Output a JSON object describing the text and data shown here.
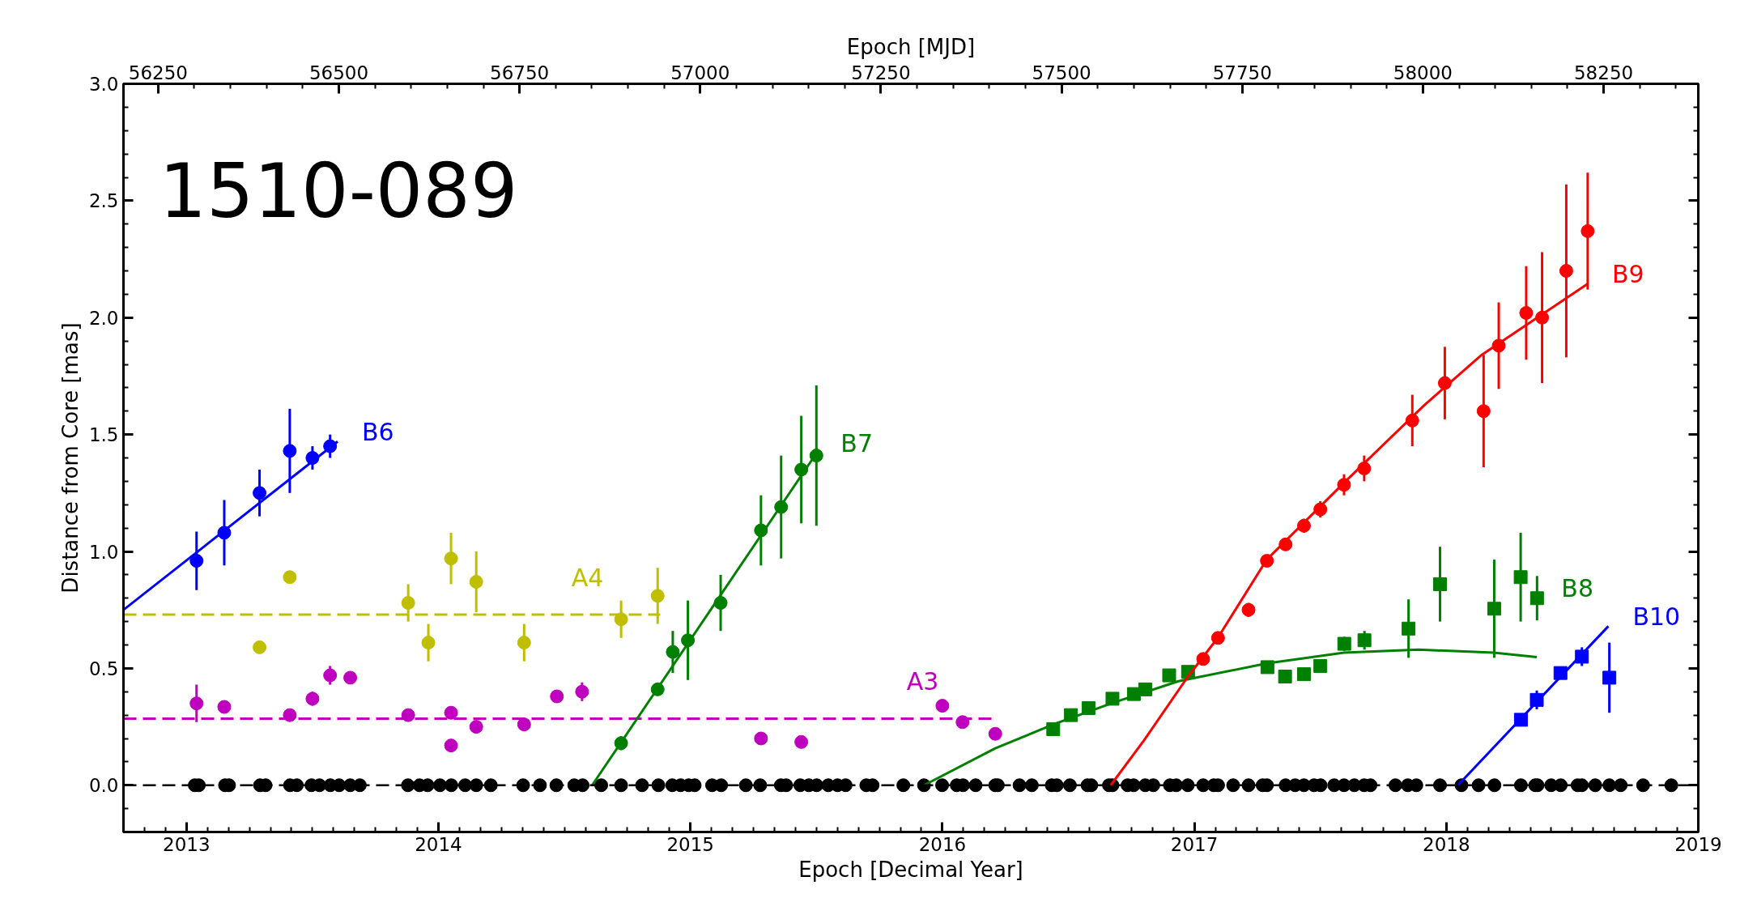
{
  "chart_data": {
    "type": "scatter",
    "title": "1510-089",
    "xlabel": "Epoch [Decimal Year]",
    "ylabel": "Distance from Core [mas]",
    "x2label": "Epoch [MJD]",
    "xlim": [
      2012.75,
      2019
    ],
    "xticks": [
      2013,
      2014,
      2015,
      2016,
      2017,
      2018,
      2019
    ],
    "x2lim": [
      56202,
      58381
    ],
    "x2ticks": [
      56250,
      56500,
      56750,
      57000,
      57250,
      57500,
      57750,
      58000,
      58250
    ],
    "ylim": [
      -0.2,
      3.0
    ],
    "yticks": [
      {
        "value": 0,
        "label": "0.0"
      },
      0.5,
      {
        "value": 1,
        "label": "1.0"
      },
      1.5,
      {
        "value": 2,
        "label": "2.0"
      },
      2.5,
      {
        "value": 3,
        "label": "3.0"
      }
    ],
    "tick_labels": "xy",
    "grid": false,
    "ref_lines": [
      {
        "axis": "y",
        "value": 0,
        "color": "#000000",
        "line_style": "dashed"
      }
    ],
    "series": [
      {
        "marker": "circle",
        "color": "#000000",
        "x": [
          2013.033,
          2013.049,
          2013.153,
          2013.169,
          2013.292,
          2013.314,
          2013.411,
          2013.438,
          2013.496,
          2013.528,
          2013.571,
          2013.606,
          2013.65,
          2013.688,
          2013.879,
          2013.925,
          2013.957,
          2014.006,
          2014.051,
          2014.106,
          2014.15,
          2014.208,
          2014.336,
          2014.403,
          2014.468,
          2014.539,
          2014.572,
          2014.646,
          2014.725,
          2014.808,
          2014.873,
          2014.928,
          2014.961,
          2014.993,
          2015.017,
          2015.086,
          2015.122,
          2015.22,
          2015.277,
          2015.359,
          2015.38,
          2015.436,
          2015.47,
          2015.501,
          2015.547,
          2015.584,
          2015.616,
          2015.698,
          2015.723,
          2015.845,
          2015.927,
          2015.999,
          2016.057,
          2016.082,
          2016.132,
          2016.21,
          2016.22,
          2016.306,
          2016.355,
          2016.434,
          2016.454,
          2016.506,
          2016.576,
          2016.591,
          2016.661,
          2016.675,
          2016.735,
          2016.759,
          2016.805,
          2016.837,
          2016.903,
          2016.928,
          2016.974,
          2017.035,
          2017.077,
          2017.094,
          2017.154,
          2017.215,
          2017.271,
          2017.288,
          2017.362,
          2017.4,
          2017.435,
          2017.475,
          2017.501,
          2017.555,
          2017.594,
          2017.635,
          2017.674,
          2017.699,
          2017.798,
          2017.847,
          2017.881,
          2017.975,
          2018.06,
          2018.128,
          2018.191,
          2018.296,
          2018.353,
          2018.362,
          2018.416,
          2018.454,
          2018.521,
          2018.538,
          2018.591,
          2018.647,
          2018.692,
          2018.781,
          2018.893
        ],
        "values": [
          0,
          0,
          0,
          0,
          0,
          0,
          0,
          0,
          0,
          0,
          0,
          0,
          0,
          0,
          0,
          0,
          0,
          0,
          0,
          0,
          0,
          0,
          0,
          0,
          0,
          0,
          0,
          0,
          0,
          0,
          0,
          0,
          0,
          0,
          0,
          0,
          0,
          0,
          0,
          0,
          0,
          0,
          0,
          0,
          0,
          0,
          0,
          0,
          0,
          0,
          0,
          0,
          0,
          0,
          0,
          0,
          0,
          0,
          0,
          0,
          0,
          0,
          0,
          0,
          0,
          0,
          0,
          0,
          0,
          0,
          0,
          0,
          0,
          0,
          0,
          0,
          0,
          0,
          0,
          0,
          0,
          0,
          0,
          0,
          0,
          0,
          0,
          0,
          0,
          0,
          0,
          0,
          0,
          0,
          0,
          0,
          0,
          0,
          0,
          0,
          0,
          0,
          0,
          0,
          0,
          0,
          0,
          0,
          0
        ]
      },
      {
        "type": "line",
        "name": "A3",
        "line_style": "dashed",
        "color": "#bf00bf",
        "x": [
          2012.75,
          2016.21
        ],
        "values": [
          0.285,
          0.285
        ]
      },
      {
        "marker": "circle",
        "color": "#bf00bf",
        "x": [
          2013.04,
          2013.15,
          2013.41,
          2013.5,
          2013.57,
          2013.65,
          2013.88,
          2014.05,
          2014.05,
          2014.15,
          2014.34,
          2014.47,
          2014.57,
          2015.28,
          2015.44,
          2016.0,
          2016.08,
          2016.21
        ],
        "values": [
          0.35,
          0.335,
          0.3,
          0.37,
          0.47,
          0.46,
          0.3,
          0.31,
          0.17,
          0.25,
          0.26,
          0.38,
          0.4,
          0.2,
          0.185,
          0.34,
          0.27,
          0.22
        ],
        "errors": [
          0.08,
          0.02,
          null,
          0.03,
          0.04,
          0.02,
          null,
          null,
          null,
          null,
          null,
          null,
          0.04,
          null,
          null,
          null,
          null,
          null
        ]
      },
      {
        "type": "line",
        "name": "A4",
        "line_style": "dashed",
        "color": "#bfbf00",
        "x": [
          2012.75,
          2014.88
        ],
        "values": [
          0.73,
          0.73
        ]
      },
      {
        "marker": "circle",
        "color": "#bfbf00",
        "x": [
          2013.29,
          2013.41,
          2013.88,
          2013.96,
          2014.05,
          2014.15,
          2014.34,
          2014.725,
          2014.87
        ],
        "values": [
          0.59,
          0.89,
          0.78,
          0.61,
          0.97,
          0.87,
          0.61,
          0.71,
          0.81
        ],
        "errors": [
          null,
          null,
          0.08,
          0.08,
          0.11,
          0.13,
          0.08,
          0.08,
          0.12
        ]
      },
      {
        "type": "line",
        "name": "B6",
        "line_style": "solid",
        "color": "#0000ff",
        "x": [
          2012.75,
          2013.6
        ],
        "values": [
          0.75,
          1.47
        ]
      },
      {
        "marker": "circle",
        "color": "#0000ff",
        "x": [
          2013.04,
          2013.15,
          2013.29,
          2013.41,
          2013.5,
          2013.57
        ],
        "values": [
          0.96,
          1.08,
          1.25,
          1.43,
          1.4,
          1.45
        ],
        "errors": [
          0.125,
          0.14,
          0.1,
          0.18,
          0.05,
          0.05
        ]
      },
      {
        "type": "line",
        "name": "B7",
        "line_style": "solid",
        "color": "#008000",
        "x": [
          2014.61,
          2015.5
        ],
        "values": [
          0,
          1.42
        ]
      },
      {
        "marker": "circle",
        "color": "#008000",
        "x": [
          2014.725,
          2014.87,
          2014.93,
          2014.99,
          2015.12,
          2015.28,
          2015.36,
          2015.44,
          2015.5
        ],
        "values": [
          0.18,
          0.41,
          0.57,
          0.62,
          0.78,
          1.09,
          1.19,
          1.35,
          1.41
        ],
        "errors": [
          0.03,
          null,
          0.09,
          0.17,
          0.12,
          0.15,
          0.22,
          0.23,
          0.3
        ]
      },
      {
        "type": "line",
        "line_style": "solid",
        "color": "#008000",
        "x": [
          2015.927,
          2016.21,
          2016.44,
          2016.675,
          2016.937,
          2017.288,
          2017.594,
          2017.89,
          2018.188,
          2018.359
        ],
        "values": [
          0,
          0.158,
          0.26,
          0.352,
          0.445,
          0.521,
          0.567,
          0.58,
          0.567,
          0.548
        ]
      },
      {
        "name": "B8",
        "marker": "square",
        "color": "#008000",
        "x": [
          2016.44,
          2016.51,
          2016.58,
          2016.675,
          2016.76,
          2016.805,
          2016.9,
          2016.975,
          2017.29,
          2017.36,
          2017.435,
          2017.5,
          2017.595,
          2017.675,
          2017.85,
          2017.975,
          2018.19,
          2018.295,
          2018.36
        ],
        "values": [
          0.24,
          0.3,
          0.33,
          0.37,
          0.39,
          0.41,
          0.47,
          0.485,
          0.505,
          0.465,
          0.475,
          0.51,
          0.605,
          0.62,
          0.67,
          0.86,
          0.755,
          0.89,
          0.8
        ],
        "errors": [
          null,
          null,
          null,
          null,
          null,
          null,
          null,
          null,
          0.02,
          null,
          null,
          null,
          0.03,
          0.04,
          0.125,
          0.16,
          0.21,
          0.19,
          0.095
        ]
      },
      {
        "type": "line",
        "name": "B9",
        "line_style": "solid",
        "color": "#ff0000",
        "x": [
          2016.668,
          2016.8,
          2016.974,
          2017.094,
          2017.288,
          2017.6,
          2017.91,
          2018.137,
          2018.561
        ],
        "values": [
          0,
          0.192,
          0.464,
          0.632,
          0.966,
          1.3,
          1.623,
          1.838,
          2.145
        ]
      },
      {
        "marker": "circle",
        "color": "#ff0000",
        "x": [
          2017.035,
          2017.094,
          2017.215,
          2017.288,
          2017.362,
          2017.435,
          2017.5,
          2017.594,
          2017.674,
          2017.865,
          2017.994,
          2018.148,
          2018.208,
          2018.317,
          2018.38,
          2018.476,
          2018.561
        ],
        "values": [
          0.54,
          0.63,
          0.75,
          0.96,
          1.03,
          1.11,
          1.18,
          1.285,
          1.355,
          1.56,
          1.72,
          1.6,
          1.88,
          2.02,
          2.0,
          2.2,
          2.37
        ],
        "errors": [
          null,
          null,
          0.03,
          null,
          null,
          0.03,
          0.035,
          0.045,
          0.055,
          0.11,
          0.155,
          0.24,
          0.185,
          0.2,
          0.28,
          0.37,
          0.25
        ]
      },
      {
        "type": "line",
        "name": "B10",
        "line_style": "solid",
        "color": "#0000ff",
        "x": [
          2018.046,
          2018.643
        ],
        "values": [
          0,
          0.68
        ]
      },
      {
        "marker": "square",
        "color": "#0000ff",
        "x": [
          2018.296,
          2018.359,
          2018.453,
          2018.538,
          2018.647
        ],
        "values": [
          0.28,
          0.365,
          0.48,
          0.55,
          0.46
        ],
        "errors": [
          null,
          0.04,
          null,
          0.04,
          0.15
        ]
      }
    ]
  }
}
